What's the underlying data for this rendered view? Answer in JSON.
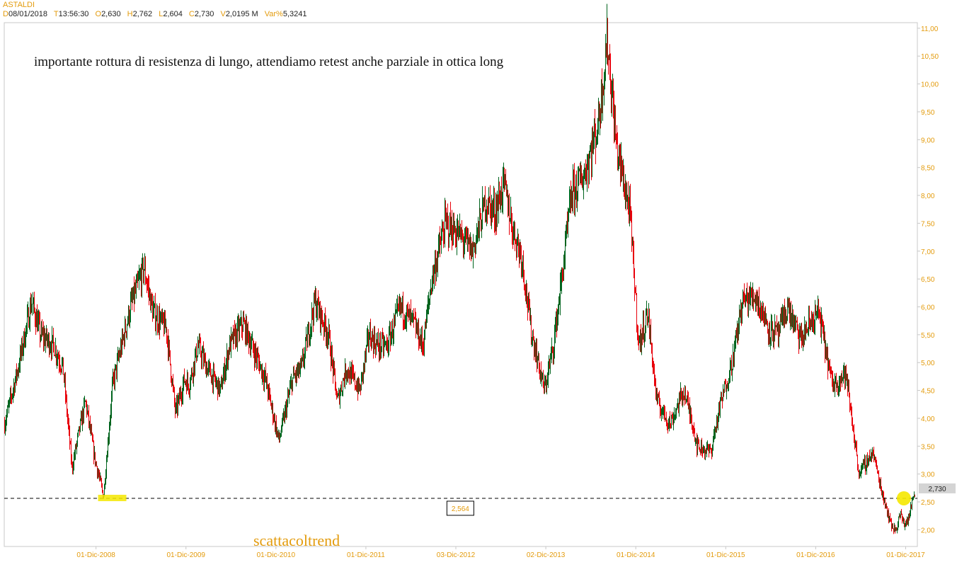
{
  "header": {
    "symbol": "ASTALDI",
    "fields": [
      {
        "key": "D",
        "value": "08/01/2018"
      },
      {
        "key": "T",
        "value": "13:56:30"
      },
      {
        "key": "O",
        "value": "2,630"
      },
      {
        "key": "H",
        "value": "2,762"
      },
      {
        "key": "L",
        "value": "2,604"
      },
      {
        "key": "C",
        "value": "2,730"
      },
      {
        "key": "V",
        "value": "2,0195 M"
      },
      {
        "key": "Var%",
        "value": "5,3241"
      }
    ]
  },
  "colors": {
    "up": "#00641e",
    "down": "#e8000b",
    "axis_text": "#e39b0c",
    "support_line": "#000000",
    "marker": "#f5e800"
  },
  "chart_data": {
    "type": "line",
    "title": "",
    "annotation": "importante rottura di resistenza di lungo, attendiamo retest anche parziale in ottica long",
    "watermark": "scattacoltrend",
    "ylim": [
      1.7,
      11.1
    ],
    "y_ticks": [
      "2,00",
      "2,50",
      "3,00",
      "3,50",
      "4,00",
      "4,50",
      "5,00",
      "5,50",
      "6,00",
      "6,50",
      "7,00",
      "7,50",
      "8,00",
      "8,50",
      "9,00",
      "9,50",
      "10,00",
      "10,50",
      "11,00"
    ],
    "x_ticks": [
      "01-Dic-2008",
      "01-Dic-2009",
      "01-Dic-2010",
      "01-Dic-2011",
      "03-Dic-2012",
      "02-Dic-2013",
      "01-Dic-2014",
      "01-Dic-2015",
      "01-Dic-2016",
      "01-Dic-2017"
    ],
    "x_tick_years": [
      2008.92,
      2009.92,
      2010.92,
      2011.92,
      2012.92,
      2013.92,
      2014.92,
      2015.92,
      2016.92,
      2017.92
    ],
    "x_range": [
      2007.9,
      2018.05
    ],
    "support_level": 2.564,
    "support_label": "2,564",
    "last_price_label": "2,730",
    "last_price": 2.73,
    "series": [
      {
        "x": [
          2007.9,
          2008.05,
          2008.2,
          2008.3,
          2008.45,
          2008.55,
          2008.65,
          2008.72,
          2008.8,
          2008.9,
          2009.0,
          2009.1,
          2009.2,
          2009.3,
          2009.45,
          2009.55,
          2009.7,
          2009.8,
          2009.9,
          2009.95,
          2010.05,
          2010.15,
          2010.3,
          2010.4,
          2010.55,
          2010.65,
          2010.8,
          2010.95,
          2011.1,
          2011.2,
          2011.35,
          2011.5,
          2011.6,
          2011.7,
          2011.85,
          2011.95,
          2012.05,
          2012.15,
          2012.3,
          2012.45,
          2012.55,
          2012.65,
          2012.8,
          2012.95,
          2013.1,
          2013.25,
          2013.35,
          2013.45,
          2013.55,
          2013.65,
          2013.75,
          2013.9,
          2014.0,
          2014.1,
          2014.2,
          2014.35,
          2014.5,
          2014.6,
          2014.7,
          2014.85,
          2014.95,
          2015.05,
          2015.15,
          2015.3,
          2015.45,
          2015.55,
          2015.6,
          2015.75,
          2015.85,
          2016.0,
          2016.1,
          2016.25,
          2016.4,
          2016.5,
          2016.6,
          2016.75,
          2016.85,
          2016.95,
          2017.1,
          2017.25,
          2017.4,
          2017.55,
          2017.65,
          2017.72,
          2017.75,
          2017.8,
          2017.83,
          2017.85,
          2017.9,
          2017.95,
          2018.0,
          2018.02
        ],
        "y": [
          3.9,
          4.9,
          6.1,
          5.5,
          5.3,
          4.9,
          3.1,
          3.7,
          4.3,
          3.3,
          2.6,
          4.6,
          5.3,
          6.0,
          6.7,
          5.9,
          5.6,
          4.1,
          4.7,
          4.6,
          5.3,
          4.9,
          4.5,
          5.3,
          5.7,
          5.3,
          4.7,
          3.6,
          4.7,
          4.9,
          6.1,
          5.5,
          4.3,
          4.9,
          4.5,
          5.5,
          5.3,
          5.3,
          6.0,
          5.7,
          5.3,
          6.5,
          7.5,
          7.3,
          7.0,
          7.9,
          7.7,
          8.2,
          7.4,
          6.9,
          5.6,
          4.5,
          5.3,
          6.6,
          8.0,
          8.4,
          9.3,
          10.8,
          8.9,
          7.7,
          5.3,
          5.9,
          4.3,
          3.9,
          4.5,
          3.9,
          3.5,
          3.4,
          4.2,
          5.1,
          6.1,
          6.2,
          5.6,
          5.5,
          6.0,
          5.4,
          5.7,
          5.9,
          4.6,
          4.8,
          3.0,
          3.4,
          2.7,
          2.3,
          2.1,
          2.0,
          2.1,
          2.3,
          2.1,
          2.2,
          2.6,
          2.73
        ]
      }
    ]
  }
}
